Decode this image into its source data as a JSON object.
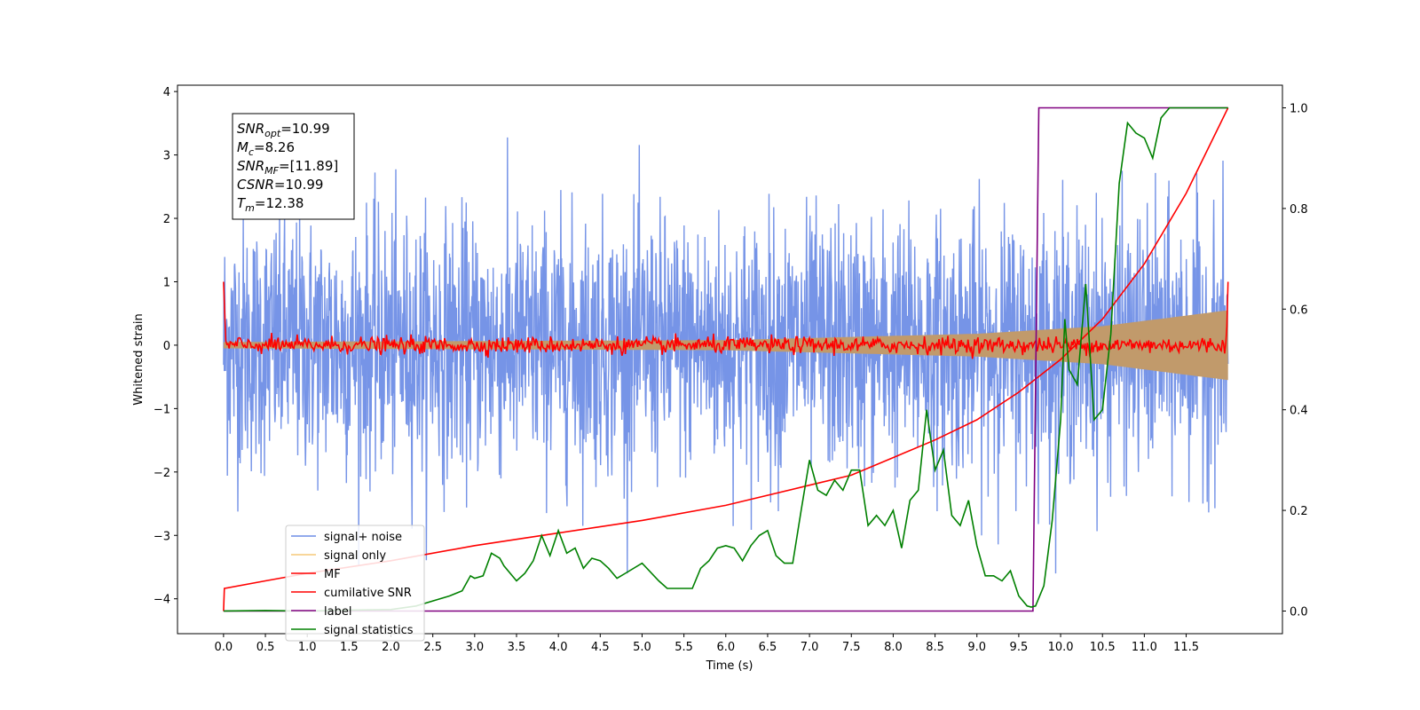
{
  "chart_data": {
    "type": "line",
    "title": "",
    "xlabel": "Time (s)",
    "ylabel": "Whitened strain",
    "y2label": "",
    "xlim": [
      -0.55,
      12.65
    ],
    "ylim": [
      -4.55,
      4.1
    ],
    "y2lim": [
      -0.045,
      1.045
    ],
    "x_ticks": [
      0.0,
      0.5,
      1.0,
      1.5,
      2.0,
      2.5,
      3.0,
      3.5,
      4.0,
      4.5,
      5.0,
      5.5,
      6.0,
      6.5,
      7.0,
      7.5,
      8.0,
      8.5,
      9.0,
      9.5,
      10.0,
      10.5,
      11.0,
      11.5
    ],
    "x_tick_labels": [
      "0.0",
      "0.5",
      "1.0",
      "1.5",
      "2.0",
      "2.5",
      "3.0",
      "3.5",
      "4.0",
      "4.5",
      "5.0",
      "5.5",
      "6.0",
      "6.5",
      "7.0",
      "7.5",
      "8.0",
      "8.5",
      "9.0",
      "9.5",
      "10.0",
      "10.5",
      "11.0",
      "11.5"
    ],
    "y_ticks": [
      4,
      3,
      2,
      1,
      0,
      -1,
      -2,
      -3,
      -4
    ],
    "y_tick_labels": [
      "4",
      "3",
      "2",
      "1",
      "0",
      "−1",
      "−2",
      "−3",
      "−4"
    ],
    "y2_ticks": [
      1.0,
      0.8,
      0.6,
      0.4,
      0.2,
      0.0
    ],
    "y2_tick_labels": [
      "1.0",
      "0.8",
      "0.6",
      "0.4",
      "0.2",
      "0.0"
    ],
    "grid": false,
    "legend_position": "lower-left",
    "series": [
      {
        "name": "signal+ noise",
        "color": "#6f8ee6",
        "axis": "left",
        "kind": "noise",
        "x_range": [
          0,
          12.0
        ],
        "amplitude_range": [
          -3.6,
          3.7
        ]
      },
      {
        "name": "signal only",
        "color": "#f5c878",
        "axis": "left",
        "kind": "chirp",
        "x_range": [
          0,
          12.0
        ],
        "envelope": [
          [
            0,
            0.05
          ],
          [
            6.0,
            0.08
          ],
          [
            9.0,
            0.18
          ],
          [
            10.5,
            0.3
          ],
          [
            12.0,
            0.55
          ]
        ]
      },
      {
        "name": "MF",
        "color": "#ff0000",
        "axis": "left",
        "kind": "noise",
        "x_range": [
          0,
          12.0
        ],
        "mean": 0.0,
        "start_value": 1.0,
        "end_value": 1.0
      },
      {
        "name": "cumilative SNR",
        "color": "#ff0000",
        "axis": "right",
        "x": [
          0,
          0.01,
          0.5,
          1.0,
          2.0,
          3.0,
          4.0,
          5.0,
          6.0,
          7.0,
          7.5,
          8.0,
          8.5,
          9.0,
          9.5,
          10.0,
          10.5,
          11.0,
          11.5,
          12.0
        ],
        "y": [
          0.0,
          0.045,
          0.06,
          0.075,
          0.1,
          0.13,
          0.155,
          0.18,
          0.21,
          0.25,
          0.27,
          0.305,
          0.34,
          0.38,
          0.435,
          0.5,
          0.58,
          0.69,
          0.83,
          1.0
        ]
      },
      {
        "name": "label",
        "color": "#800080",
        "axis": "right",
        "x": [
          0,
          9.67,
          9.74,
          12.0
        ],
        "y": [
          0.0,
          0.0,
          1.0,
          1.0
        ]
      },
      {
        "name": "signal statistics",
        "color": "#008000",
        "axis": "right",
        "x": [
          0,
          0.5,
          1.0,
          1.5,
          2.0,
          2.3,
          2.5,
          2.7,
          2.85,
          2.95,
          3.0,
          3.1,
          3.2,
          3.3,
          3.35,
          3.5,
          3.6,
          3.7,
          3.8,
          3.9,
          4.0,
          4.1,
          4.2,
          4.3,
          4.4,
          4.5,
          4.6,
          4.7,
          4.8,
          5.0,
          5.2,
          5.3,
          5.4,
          5.6,
          5.7,
          5.8,
          5.9,
          6.0,
          6.1,
          6.2,
          6.3,
          6.4,
          6.5,
          6.6,
          6.7,
          6.8,
          6.9,
          7.0,
          7.1,
          7.2,
          7.3,
          7.4,
          7.5,
          7.6,
          7.7,
          7.8,
          7.9,
          8.0,
          8.1,
          8.2,
          8.3,
          8.4,
          8.5,
          8.6,
          8.7,
          8.8,
          8.9,
          9.0,
          9.1,
          9.2,
          9.3,
          9.4,
          9.5,
          9.6,
          9.65,
          9.7,
          9.8,
          9.9,
          10.0,
          10.05,
          10.1,
          10.2,
          10.3,
          10.4,
          10.5,
          10.6,
          10.7,
          10.8,
          10.9,
          11.0,
          11.1,
          11.2,
          11.3,
          11.5,
          12.0
        ],
        "y": [
          0.0,
          0.001,
          0.0,
          0.002,
          0.003,
          0.01,
          0.02,
          0.03,
          0.04,
          0.07,
          0.065,
          0.07,
          0.115,
          0.105,
          0.09,
          0.06,
          0.075,
          0.1,
          0.15,
          0.11,
          0.16,
          0.115,
          0.125,
          0.085,
          0.105,
          0.1,
          0.085,
          0.065,
          0.075,
          0.095,
          0.06,
          0.045,
          0.045,
          0.045,
          0.085,
          0.1,
          0.125,
          0.13,
          0.125,
          0.1,
          0.13,
          0.15,
          0.16,
          0.11,
          0.095,
          0.095,
          0.2,
          0.3,
          0.24,
          0.23,
          0.26,
          0.24,
          0.28,
          0.28,
          0.17,
          0.19,
          0.17,
          0.2,
          0.125,
          0.22,
          0.24,
          0.4,
          0.28,
          0.32,
          0.19,
          0.17,
          0.22,
          0.13,
          0.07,
          0.07,
          0.06,
          0.08,
          0.03,
          0.01,
          0.008,
          0.01,
          0.05,
          0.18,
          0.38,
          0.58,
          0.48,
          0.45,
          0.65,
          0.38,
          0.4,
          0.55,
          0.85,
          0.97,
          0.95,
          0.94,
          0.9,
          0.98,
          1.0,
          1.0,
          1.0
        ]
      }
    ],
    "annotations": [
      {
        "label": "SNR",
        "sub": "opt",
        "value": "=10.99"
      },
      {
        "label": "M",
        "sub": "c",
        "value": "=8.26"
      },
      {
        "label": "SNR",
        "sub": "MF",
        "value": "=[11.89]"
      },
      {
        "label": "CSNR",
        "sub": "",
        "value": "=10.99"
      },
      {
        "label": "T",
        "sub": "m",
        "value": "=12.38"
      }
    ]
  }
}
